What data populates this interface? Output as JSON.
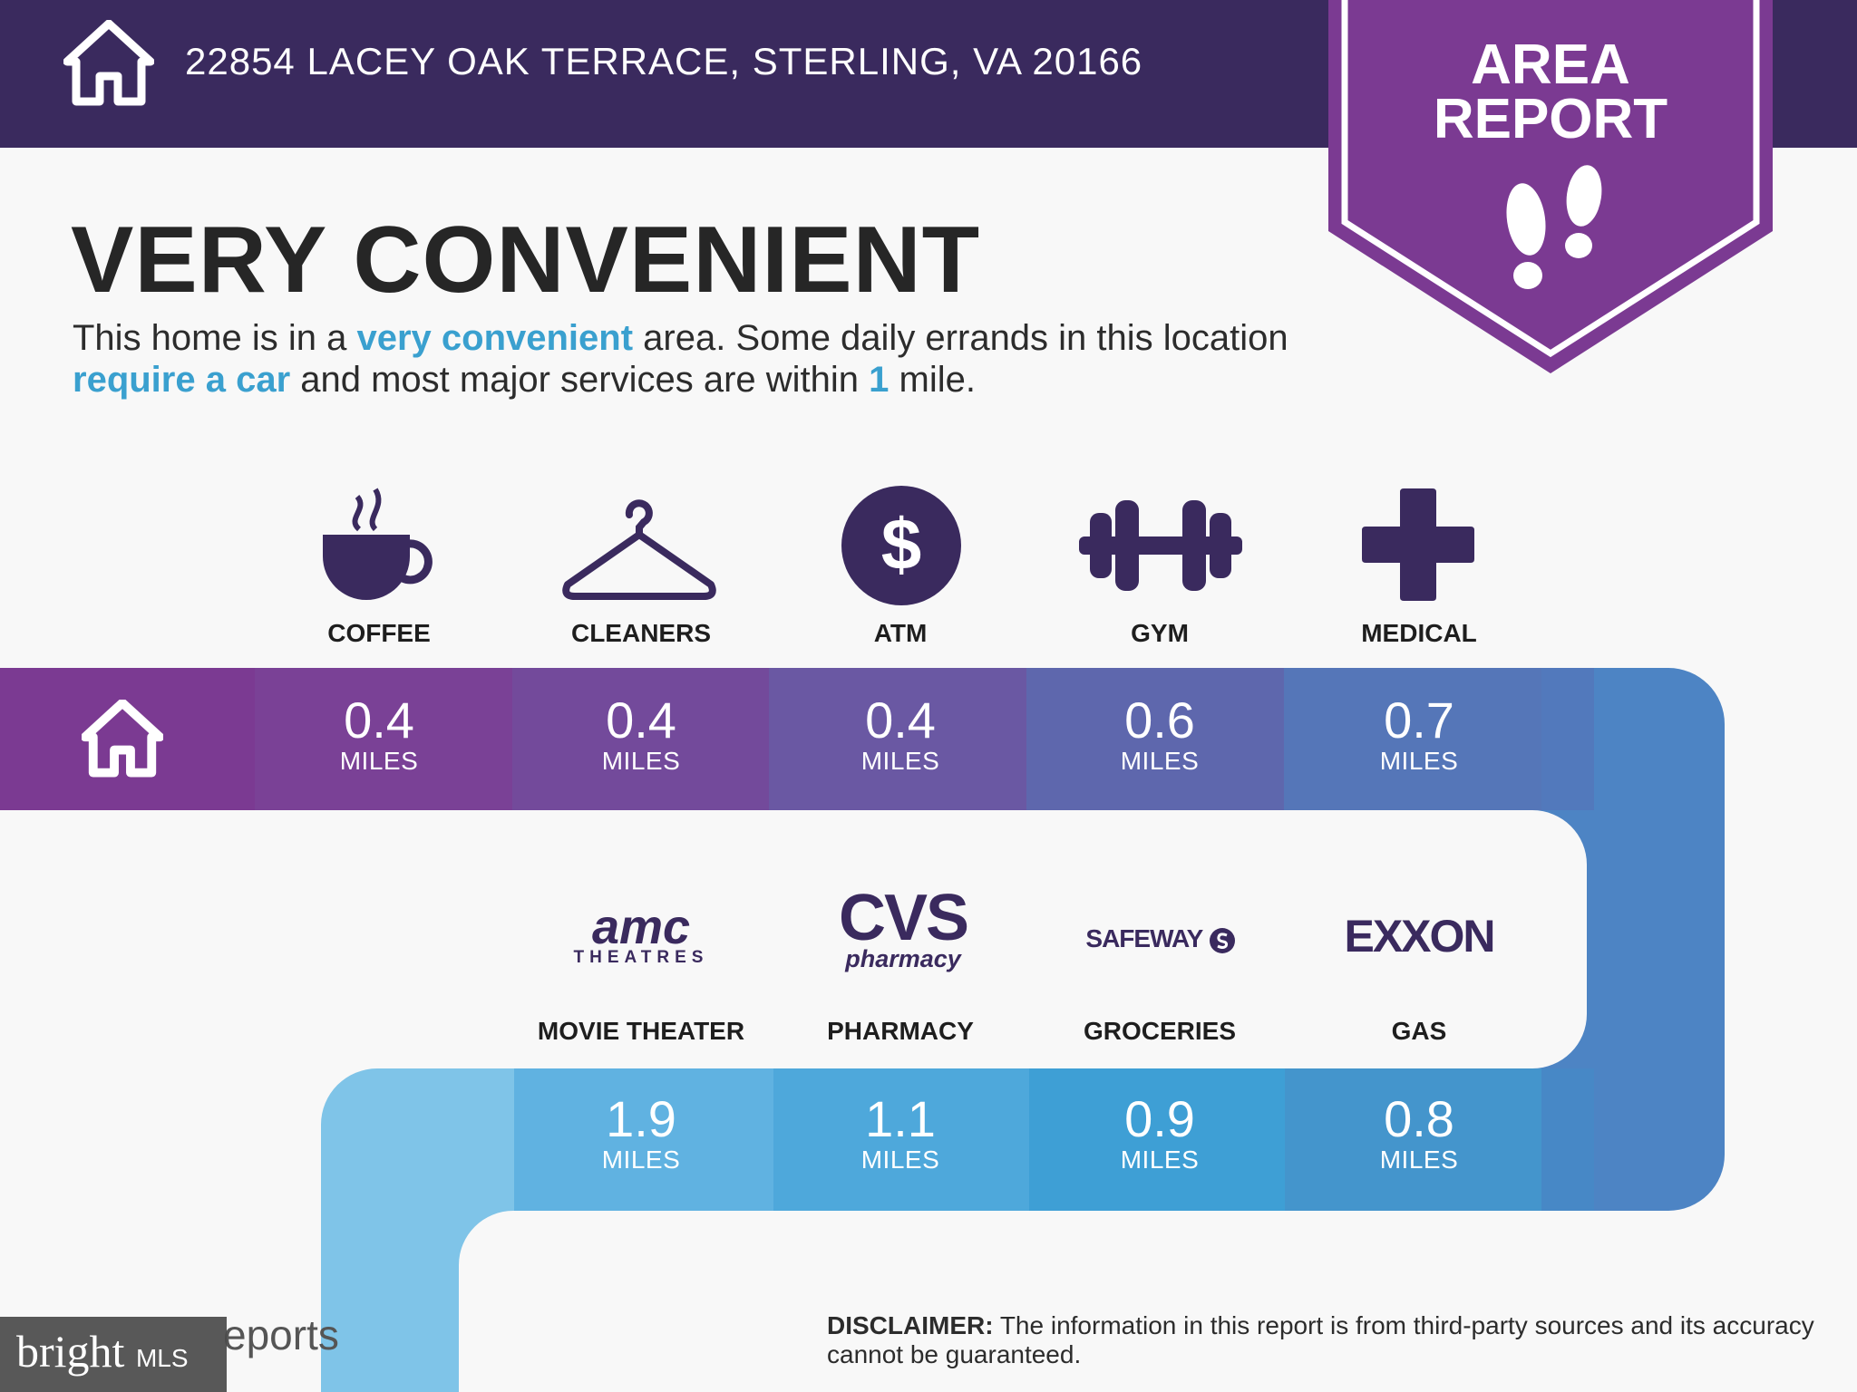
{
  "header": {
    "address": "22854 LACEY OAK TERRACE, STERLING, VA 20166"
  },
  "badge": {
    "line1": "AREA",
    "line2": "REPORT"
  },
  "headline": "VERY CONVENIENT",
  "description": {
    "p1": "This home is in a ",
    "h1": "very convenient",
    "p2": " area. Some daily errands in this location ",
    "h2": "require a car",
    "p3": " and most major services are within ",
    "h3": "1",
    "p4": " mile."
  },
  "row1": [
    {
      "label": "COFFEE",
      "value": "0.4",
      "unit": "MILES",
      "icon": "coffee-icon"
    },
    {
      "label": "CLEANERS",
      "value": "0.4",
      "unit": "MILES",
      "icon": "hanger-icon"
    },
    {
      "label": "ATM",
      "value": "0.4",
      "unit": "MILES",
      "icon": "dollar-icon"
    },
    {
      "label": "GYM",
      "value": "0.6",
      "unit": "MILES",
      "icon": "dumbbell-icon"
    },
    {
      "label": "MEDICAL",
      "value": "0.7",
      "unit": "MILES",
      "icon": "medical-cross-icon"
    }
  ],
  "row2": [
    {
      "label": "MOVIE THEATER",
      "value": "1.9",
      "unit": "MILES",
      "logo": "amc-logo"
    },
    {
      "label": "PHARMACY",
      "value": "1.1",
      "unit": "MILES",
      "logo": "cvs-logo"
    },
    {
      "label": "GROCERIES",
      "value": "0.9",
      "unit": "MILES",
      "logo": "safeway-logo"
    },
    {
      "label": "GAS",
      "value": "0.8",
      "unit": "MILES",
      "logo": "exxon-logo"
    }
  ],
  "logos": {
    "amc_top": "amc",
    "amc_bottom": "THEATRES",
    "cvs_top": "CVS",
    "cvs_bottom": "pharmacy",
    "safeway": "SAFEWAY",
    "exxon": "EXXON"
  },
  "disclaimer": {
    "label": "DISCLAIMER:",
    "text": " The information in this report is from third-party sources and its accuracy cannot be guaranteed."
  },
  "footer": {
    "brand": "bright",
    "brand_suffix": "MLS",
    "reports": "eports"
  },
  "colors": {
    "header_bg": "#3a2a5e",
    "badge_purple": "#7b3a92",
    "accent_blue": "#3aa0cf",
    "icon_purple": "#3a2a5e"
  }
}
